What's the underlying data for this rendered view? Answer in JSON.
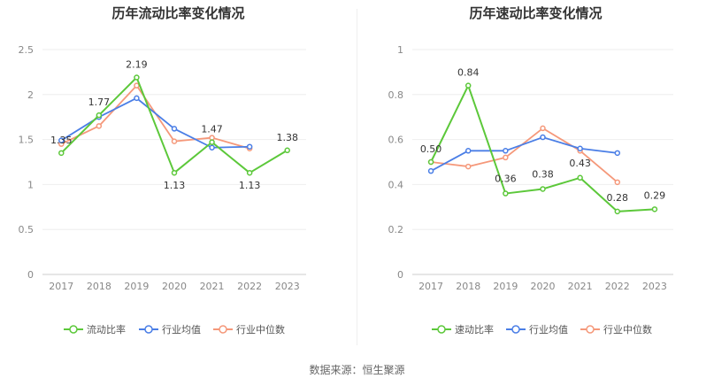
{
  "source": "数据来源：恒生聚源",
  "chart_data": [
    {
      "type": "line",
      "title": "历年流动比率变化情况",
      "categories": [
        "2017",
        "2018",
        "2019",
        "2020",
        "2021",
        "2022",
        "2023"
      ],
      "ylim": [
        0,
        2.5
      ],
      "yticks": [
        "0",
        "0.5",
        "1",
        "1.5",
        "2",
        "2.5"
      ],
      "legend_position": "bottom",
      "grid": true,
      "series": [
        {
          "name": "流动比率",
          "color": "#5cc83a",
          "values": [
            1.35,
            1.77,
            2.19,
            1.13,
            1.47,
            1.13,
            1.38
          ],
          "labels": [
            "1.35",
            "1.77",
            "2.19",
            "1.13",
            "1.47",
            "1.13",
            "1.38"
          ]
        },
        {
          "name": "行业均值",
          "color": "#4a7ee6",
          "values": [
            1.49,
            1.75,
            1.96,
            1.62,
            1.41,
            1.42,
            null
          ]
        },
        {
          "name": "行业中位数",
          "color": "#f5987a",
          "values": [
            1.45,
            1.65,
            2.1,
            1.48,
            1.52,
            1.4,
            null
          ]
        }
      ]
    },
    {
      "type": "line",
      "title": "历年速动比率变化情况",
      "categories": [
        "2017",
        "2018",
        "2019",
        "2020",
        "2021",
        "2022",
        "2023"
      ],
      "ylim": [
        0,
        1
      ],
      "yticks": [
        "0",
        "0.2",
        "0.4",
        "0.6",
        "0.8",
        "1"
      ],
      "legend_position": "bottom",
      "grid": true,
      "series": [
        {
          "name": "速动比率",
          "color": "#5cc83a",
          "values": [
            0.5,
            0.84,
            0.36,
            0.38,
            0.43,
            0.28,
            0.29
          ],
          "labels": [
            "0.50",
            "0.84",
            "0.36",
            "0.38",
            "0.43",
            "0.28",
            "0.29"
          ]
        },
        {
          "name": "行业均值",
          "color": "#4a7ee6",
          "values": [
            0.46,
            0.55,
            0.55,
            0.61,
            0.56,
            0.54,
            null
          ]
        },
        {
          "name": "行业中位数",
          "color": "#f5987a",
          "values": [
            0.5,
            0.48,
            0.52,
            0.65,
            0.55,
            0.41,
            null
          ]
        }
      ]
    }
  ]
}
